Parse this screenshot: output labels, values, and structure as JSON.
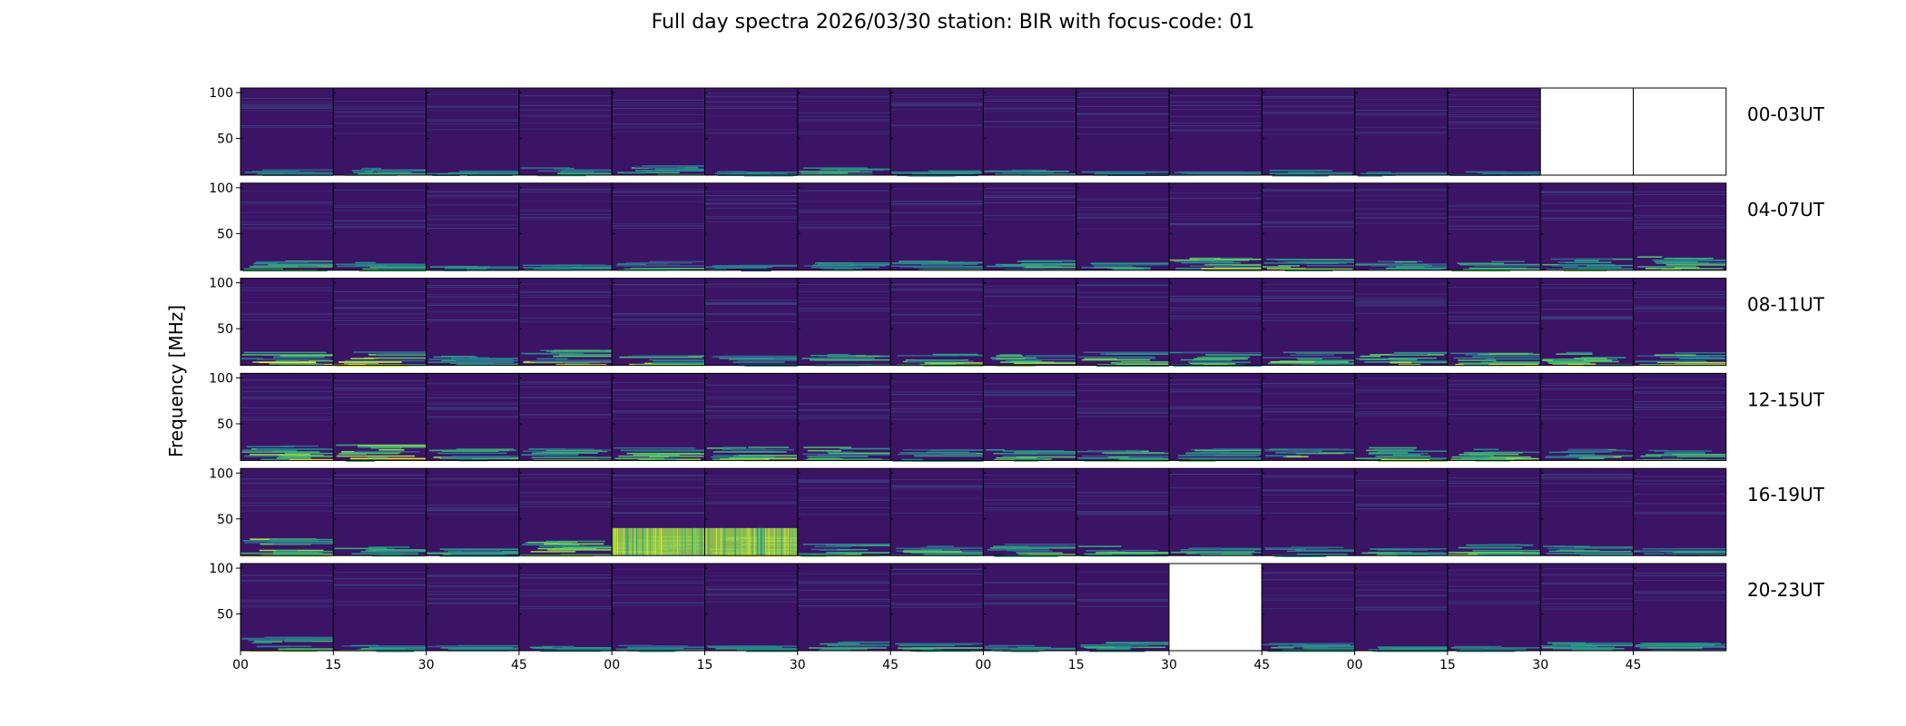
{
  "chart_data": {
    "type": "heatmap",
    "title": "Full day spectra 2026/03/30 station: BIR with focus-code: 01",
    "ylabel": "Frequency [MHz]",
    "xlabel": "",
    "ylim": [
      10,
      105
    ],
    "y_ticks": [
      50,
      100
    ],
    "x_tick_labels": [
      "00",
      "15",
      "30",
      "45",
      "00",
      "15",
      "30",
      "45",
      "00",
      "15",
      "30",
      "45",
      "00",
      "15",
      "30",
      "45"
    ],
    "colormap": "viridis",
    "colors": {
      "dark": "#440154",
      "mid": "#21918c",
      "bright": "#fde725",
      "background": "#3b1466"
    },
    "panels_per_row": 16,
    "minutes_per_panel": 15,
    "rows": [
      {
        "label": "00-03UT",
        "missing": [
          14,
          15
        ],
        "activity": [
          0.3,
          0.4,
          0.3,
          0.4,
          0.5,
          0.3,
          0.4,
          0.3,
          0.3,
          0.2,
          0.2,
          0.3,
          0.2,
          0.2,
          0,
          0
        ]
      },
      {
        "label": "04-07UT",
        "missing": [],
        "activity": [
          0.5,
          0.5,
          0.3,
          0.3,
          0.5,
          0.3,
          0.4,
          0.5,
          0.5,
          0.4,
          0.7,
          0.6,
          0.5,
          0.5,
          0.6,
          0.7
        ]
      },
      {
        "label": "08-11UT",
        "missing": [],
        "activity": [
          0.7,
          0.8,
          0.5,
          0.8,
          0.6,
          0.5,
          0.6,
          0.6,
          0.6,
          0.7,
          0.7,
          0.7,
          0.7,
          0.7,
          0.7,
          0.7
        ]
      },
      {
        "label": "12-15UT",
        "missing": [],
        "activity": [
          0.8,
          0.8,
          0.6,
          0.6,
          0.7,
          0.7,
          0.7,
          0.6,
          0.6,
          0.6,
          0.6,
          0.6,
          0.7,
          0.6,
          0.6,
          0.6
        ]
      },
      {
        "label": "16-19UT",
        "missing": [],
        "activity": [
          0.9,
          0.5,
          0.4,
          0.8,
          1.0,
          1.0,
          0.6,
          0.5,
          0.6,
          0.5,
          0.4,
          0.5,
          0.4,
          0.6,
          0.5,
          0.4
        ]
      },
      {
        "label": "20-23UT",
        "missing": [
          10
        ],
        "activity": [
          0.7,
          0.4,
          0.3,
          0.3,
          0.3,
          0.3,
          0.5,
          0.5,
          0.4,
          0.5,
          0,
          0.4,
          0.3,
          0.3,
          0.5,
          0.4
        ]
      }
    ]
  }
}
